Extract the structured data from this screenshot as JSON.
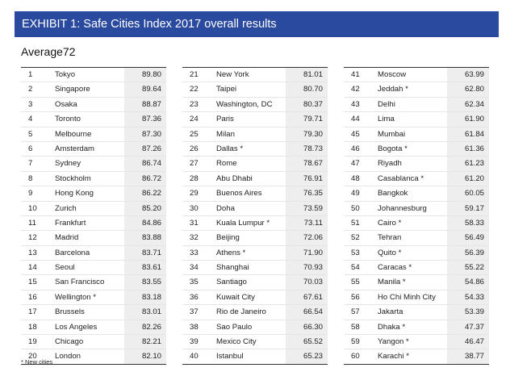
{
  "header": {
    "title": "EXHIBIT 1: Safe Cities Index 2017 overall results"
  },
  "average": {
    "label": "Average72"
  },
  "columns": [
    [
      {
        "rank": "1",
        "city": "Tokyo",
        "score": "89.80"
      },
      {
        "rank": "2",
        "city": "Singapore",
        "score": "89.64"
      },
      {
        "rank": "3",
        "city": "Osaka",
        "score": "88.87"
      },
      {
        "rank": "4",
        "city": "Toronto",
        "score": "87.36"
      },
      {
        "rank": "5",
        "city": "Melbourne",
        "score": "87.30"
      },
      {
        "rank": "6",
        "city": "Amsterdam",
        "score": "87.26"
      },
      {
        "rank": "7",
        "city": "Sydney",
        "score": "86.74"
      },
      {
        "rank": "8",
        "city": "Stockholm",
        "score": "86.72"
      },
      {
        "rank": "9",
        "city": "Hong Kong",
        "score": "86.22"
      },
      {
        "rank": "10",
        "city": "Zurich",
        "score": "85.20"
      },
      {
        "rank": "11",
        "city": "Frankfurt",
        "score": "84.86"
      },
      {
        "rank": "12",
        "city": "Madrid",
        "score": "83.88"
      },
      {
        "rank": "13",
        "city": "Barcelona",
        "score": "83.71"
      },
      {
        "rank": "14",
        "city": "Seoul",
        "score": "83.61"
      },
      {
        "rank": "15",
        "city": "San Francisco",
        "score": "83.55"
      },
      {
        "rank": "16",
        "city": "Wellington *",
        "score": "83.18"
      },
      {
        "rank": "17",
        "city": "Brussels",
        "score": "83.01"
      },
      {
        "rank": "18",
        "city": "Los Angeles",
        "score": "82.26"
      },
      {
        "rank": "19",
        "city": "Chicago",
        "score": "82.21"
      },
      {
        "rank": "20",
        "city": "London",
        "score": "82.10"
      }
    ],
    [
      {
        "rank": "21",
        "city": "New York",
        "score": "81.01"
      },
      {
        "rank": "22",
        "city": "Taipei",
        "score": "80.70"
      },
      {
        "rank": "23",
        "city": "Washington, DC",
        "score": "80.37"
      },
      {
        "rank": "24",
        "city": "Paris",
        "score": "79.71"
      },
      {
        "rank": "25",
        "city": "Milan",
        "score": "79.30"
      },
      {
        "rank": "26",
        "city": "Dallas *",
        "score": "78.73"
      },
      {
        "rank": "27",
        "city": "Rome",
        "score": "78.67"
      },
      {
        "rank": "28",
        "city": "Abu Dhabi",
        "score": "76.91"
      },
      {
        "rank": "29",
        "city": "Buenos Aires",
        "score": "76.35"
      },
      {
        "rank": "30",
        "city": "Doha",
        "score": "73.59"
      },
      {
        "rank": "31",
        "city": "Kuala Lumpur *",
        "score": "73.11"
      },
      {
        "rank": "32",
        "city": "Beijing",
        "score": "72.06"
      },
      {
        "rank": "33",
        "city": "Athens *",
        "score": "71.90"
      },
      {
        "rank": "34",
        "city": "Shanghai",
        "score": "70.93"
      },
      {
        "rank": "35",
        "city": "Santiago",
        "score": "70.03"
      },
      {
        "rank": "36",
        "city": "Kuwait City",
        "score": "67.61"
      },
      {
        "rank": "37",
        "city": "Rio de Janeiro",
        "score": "66.54"
      },
      {
        "rank": "38",
        "city": "Sao Paulo",
        "score": "66.30"
      },
      {
        "rank": "39",
        "city": "Mexico City",
        "score": "65.52"
      },
      {
        "rank": "40",
        "city": "Istanbul",
        "score": "65.23"
      }
    ],
    [
      {
        "rank": "41",
        "city": "Moscow",
        "score": "63.99"
      },
      {
        "rank": "42",
        "city": "Jeddah *",
        "score": "62.80"
      },
      {
        "rank": "43",
        "city": "Delhi",
        "score": "62.34"
      },
      {
        "rank": "44",
        "city": "Lima",
        "score": "61.90"
      },
      {
        "rank": "45",
        "city": "Mumbai",
        "score": "61.84"
      },
      {
        "rank": "46",
        "city": "Bogota *",
        "score": "61.36"
      },
      {
        "rank": "47",
        "city": "Riyadh",
        "score": "61.23"
      },
      {
        "rank": "48",
        "city": "Casablanca *",
        "score": "61.20"
      },
      {
        "rank": "49",
        "city": "Bangkok",
        "score": "60.05"
      },
      {
        "rank": "50",
        "city": "Johannesburg",
        "score": "59.17"
      },
      {
        "rank": "51",
        "city": "Cairo *",
        "score": "58.33"
      },
      {
        "rank": "52",
        "city": "Tehran",
        "score": "56.49"
      },
      {
        "rank": "53",
        "city": "Quito *",
        "score": "56.39"
      },
      {
        "rank": "54",
        "city": "Caracas *",
        "score": "55.22"
      },
      {
        "rank": "55",
        "city": "Manila *",
        "score": "54.86"
      },
      {
        "rank": "56",
        "city": "Ho Chi Minh City",
        "score": "54.33"
      },
      {
        "rank": "57",
        "city": "Jakarta",
        "score": "53.39"
      },
      {
        "rank": "58",
        "city": "Dhaka *",
        "score": "47.37"
      },
      {
        "rank": "59",
        "city": "Yangon *",
        "score": "46.47"
      },
      {
        "rank": "60",
        "city": "Karachi *",
        "score": "38.77"
      }
    ]
  ],
  "footnote": "* New cities",
  "colors": {
    "header_bg": "#2a4aa0",
    "score_bg": "#eeeeee"
  }
}
